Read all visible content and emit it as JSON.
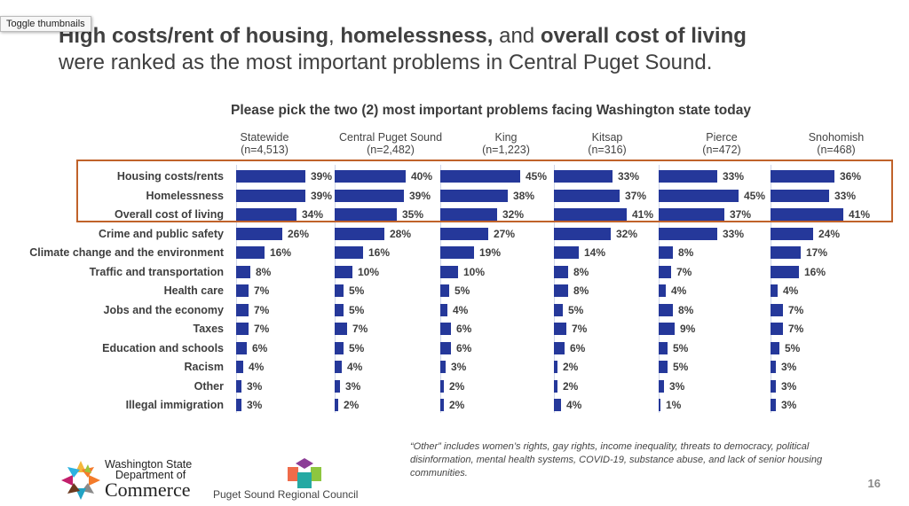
{
  "tooltip": "Toggle thumbnails",
  "title": {
    "line1_parts": [
      "High costs/rent of housing",
      ", ",
      "homelessness,",
      " and ",
      "overall cost of living"
    ],
    "line2": "were ranked as the most important problems in Central Puget Sound."
  },
  "chart_data": {
    "type": "bar",
    "orientation": "horizontal",
    "title": "Please pick the two (2) most important problems facing Washington state today",
    "categories": [
      "Housing costs/rents",
      "Homelessness",
      "Overall cost of living",
      "Crime and public safety",
      "Climate change and the environment",
      "Traffic and transportation",
      "Health care",
      "Jobs and the economy",
      "Taxes",
      "Education and schools",
      "Racism",
      "Other",
      "Illegal immigration"
    ],
    "series": [
      {
        "name": "Statewide",
        "n": "(n=4,513)",
        "values": [
          39,
          39,
          34,
          26,
          16,
          8,
          7,
          7,
          7,
          6,
          4,
          3,
          3
        ]
      },
      {
        "name": "Central Puget Sound",
        "n": "(n=2,482)",
        "values": [
          40,
          39,
          35,
          28,
          16,
          10,
          5,
          5,
          7,
          5,
          4,
          3,
          2
        ]
      },
      {
        "name": "King",
        "n": "(n=1,223)",
        "values": [
          45,
          38,
          32,
          27,
          19,
          10,
          5,
          4,
          6,
          6,
          3,
          2,
          2
        ]
      },
      {
        "name": "Kitsap",
        "n": "(n=316)",
        "values": [
          33,
          37,
          41,
          32,
          14,
          8,
          8,
          5,
          7,
          6,
          2,
          2,
          4
        ]
      },
      {
        "name": "Pierce",
        "n": "(n=472)",
        "values": [
          33,
          45,
          37,
          33,
          8,
          7,
          4,
          8,
          9,
          5,
          5,
          3,
          1
        ]
      },
      {
        "name": "Snohomish",
        "n": "(n=468)",
        "values": [
          36,
          33,
          41,
          24,
          17,
          16,
          4,
          7,
          7,
          5,
          3,
          3,
          3
        ]
      }
    ],
    "unit": "%",
    "highlighted_categories": [
      "Housing costs/rents",
      "Homelessness",
      "Overall cost of living"
    ],
    "bar_color": "#25389a",
    "highlight_color": "#c0622a"
  },
  "footnote": "“Other” includes women’s rights, gay rights, income inequality, threats to democracy, political disinformation, mental health systems, COVID-19, substance abuse, and lack of senior housing communities.",
  "page_number": "16",
  "logos": {
    "commerce": {
      "line1": "Washington State",
      "line2": "Department of",
      "line3": "Commerce"
    },
    "psrc": "Puget Sound Regional Council"
  }
}
